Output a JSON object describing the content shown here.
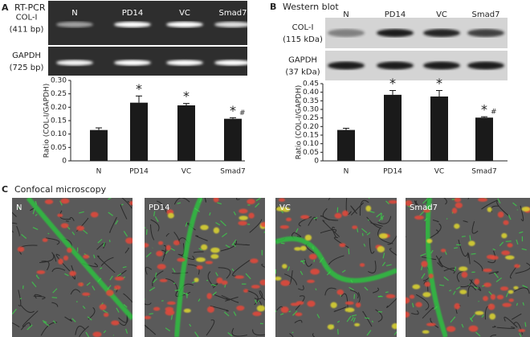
{
  "panels": [
    {
      "label": "A",
      "title": "RT-PCR",
      "lanes": [
        "N",
        "PD14",
        "VC",
        "Smad7"
      ],
      "blots": [
        {
          "name": "COL-I",
          "size": "(411 bp)"
        },
        {
          "name": "GAPDH",
          "size": "(725 bp)"
        }
      ]
    },
    {
      "label": "B",
      "title": "Western blot",
      "lanes": [
        "N",
        "PD14",
        "VC",
        "Smad7"
      ],
      "blots": [
        {
          "name": "COL-I",
          "size": "(115 kDa)"
        },
        {
          "name": "GAPDH",
          "size": "(37 kDa)"
        }
      ]
    }
  ],
  "chart_data": [
    {
      "type": "bar",
      "ylabel": "Ratio (COL-I/GAPDH)",
      "categories": [
        "N",
        "PD14",
        "VC",
        "Smad7"
      ],
      "values": [
        0.115,
        0.217,
        0.207,
        0.157
      ],
      "errors": [
        0.008,
        0.025,
        0.007,
        0.004
      ],
      "markers": [
        null,
        "*",
        "*",
        "*"
      ],
      "markers2": [
        null,
        null,
        null,
        "#"
      ],
      "color": "#1a1a1a",
      "ylim": [
        0,
        0.3
      ],
      "yticks": [
        0,
        0.05,
        {
          "value": 0.1,
          "label": "0.10"
        },
        0.15,
        {
          "value": 0.2,
          "label": "0.20"
        },
        0.25,
        {
          "value": 0.3,
          "label": "0.30"
        }
      ]
    },
    {
      "type": "bar",
      "ylabel": "Ratio (COL-I/GAPDH)",
      "categories": [
        "N",
        "PD14",
        "VC",
        "Smad7"
      ],
      "values": [
        0.18,
        0.385,
        0.375,
        0.252
      ],
      "errors": [
        0.01,
        0.025,
        0.035,
        0.005
      ],
      "markers": [
        null,
        "*",
        "*",
        "*"
      ],
      "markers2": [
        null,
        null,
        null,
        "#"
      ],
      "color": "#1a1a1a",
      "ylim": [
        0,
        0.45
      ],
      "yticks": [
        0,
        0.05,
        {
          "value": 0.1,
          "label": "0.10"
        },
        0.15,
        {
          "value": 0.2,
          "label": "0.20"
        },
        0.25,
        {
          "value": 0.3,
          "label": "0.30"
        },
        0.35,
        {
          "value": 0.4,
          "label": "0.40"
        },
        0.45
      ]
    }
  ],
  "confocal": {
    "label": "C",
    "title": "Confocal microscopy",
    "images": [
      "N",
      "PD14",
      "VC",
      "Smad7"
    ]
  }
}
